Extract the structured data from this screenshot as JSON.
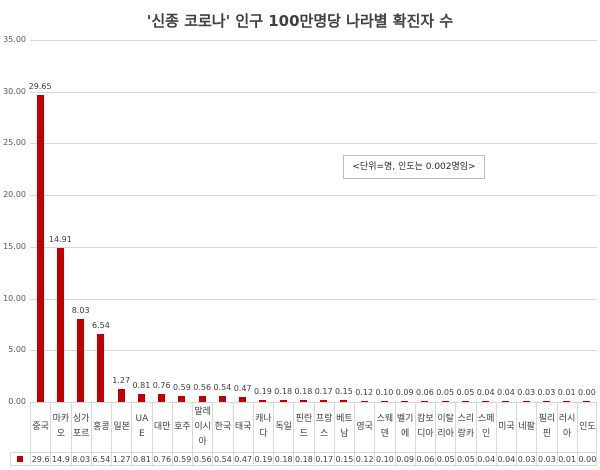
{
  "chart_data": {
    "type": "bar",
    "title": "'신종 코로나' 인구 100만명당 나라별 확진자 수",
    "xlabel": "",
    "ylabel": "",
    "ylim": [
      0,
      35
    ],
    "yticks": [
      "0.00",
      "5.00",
      "10.00",
      "15.00",
      "20.00",
      "25.00",
      "30.00",
      "35.00"
    ],
    "grid": true,
    "legend_position": "data-table",
    "color": "#c00000",
    "annotation": "<단위=명, 인도는 0.002명임>",
    "categories": [
      "중국",
      "마카오",
      "싱가포르",
      "홍콩",
      "일본",
      "UAE",
      "대만",
      "호주",
      "말레이시아",
      "한국",
      "태국",
      "캐나다",
      "독일",
      "핀란드",
      "프랑스",
      "베트남",
      "영국",
      "스웨덴",
      "벨기에",
      "캄보디아",
      "이탈리아",
      "스리랑카",
      "스페인",
      "미국",
      "네팔",
      "필리핀",
      "러시아",
      "인도"
    ],
    "category_labels": [
      "중국",
      "마카\n오",
      "싱가\n포르",
      "홍콩",
      "일본",
      "UAE",
      "대만",
      "호주",
      "말레\n이시\n아",
      "한국",
      "태국",
      "캐나\n다",
      "독일",
      "핀란\n드",
      "프랑\n스",
      "베트\n남",
      "영국",
      "스웨\n덴",
      "벨기\n에",
      "캄보\n디아",
      "이탈\n리아",
      "스리\n랑카",
      "스페\n인",
      "미국",
      "네팔",
      "필리\n핀",
      "러시\n아",
      "인도"
    ],
    "values": [
      29.65,
      14.91,
      8.03,
      6.54,
      1.27,
      0.81,
      0.76,
      0.59,
      0.56,
      0.54,
      0.47,
      0.19,
      0.18,
      0.18,
      0.17,
      0.15,
      0.12,
      0.1,
      0.09,
      0.06,
      0.05,
      0.05,
      0.04,
      0.04,
      0.03,
      0.03,
      0.01,
      0.0
    ],
    "data_labels": [
      "29.65",
      "14.91",
      "8.03",
      "6.54",
      "1.27",
      "0.81",
      "0.76",
      "0.59",
      "0.56",
      "0.54",
      "0.47",
      "0.19",
      "0.18",
      "0.18",
      "0.17",
      "0.15",
      "0.12",
      "0.10",
      "0.09",
      "0.06",
      "0.05",
      "0.05",
      "0.04",
      "0.04",
      "0.03",
      "0.03",
      "0.01",
      "0.00"
    ],
    "table_values": [
      "29.6",
      "14.9",
      "8.03",
      "6.54",
      "1.27",
      "0.81",
      "0.76",
      "0.59",
      "0.56",
      "0.54",
      "0.47",
      "0.19",
      "0.18",
      "0.18",
      "0.17",
      "0.15",
      "0.12",
      "0.10",
      "0.09",
      "0.06",
      "0.05",
      "0.05",
      "0.04",
      "0.04",
      "0.03",
      "0.03",
      "0.01",
      "0.00"
    ]
  }
}
